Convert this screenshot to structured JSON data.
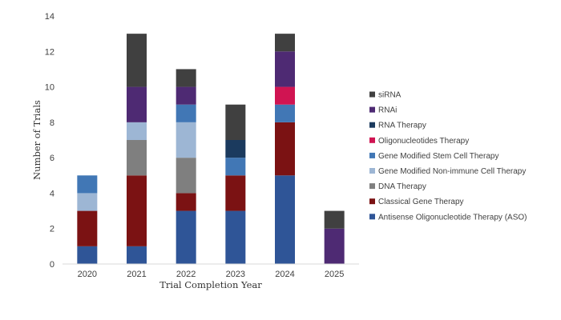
{
  "chart_data": {
    "type": "bar",
    "stacked": true,
    "title": "",
    "xlabel": "Trial Completion Year",
    "ylabel": "Number of Trials",
    "categories": [
      "2020",
      "2021",
      "2022",
      "2023",
      "2024",
      "2025"
    ],
    "ylim": [
      0,
      14
    ],
    "yticks": [
      0,
      2,
      4,
      6,
      8,
      10,
      12,
      14
    ],
    "grid": false,
    "legend_position": "right",
    "series": [
      {
        "name": "Antisense Oligonucleotide Therapy (ASO)",
        "color": "#2F5597",
        "values": [
          1,
          1,
          3,
          3,
          5,
          0
        ]
      },
      {
        "name": "Classical Gene Therapy",
        "color": "#7B1213",
        "values": [
          2,
          4,
          1,
          2,
          3,
          0
        ]
      },
      {
        "name": "DNA Therapy",
        "color": "#7F7F7F",
        "values": [
          0,
          2,
          2,
          0,
          0,
          0
        ]
      },
      {
        "name": "Gene Modified Non-immune Cell Therapy",
        "color": "#9DB6D4",
        "values": [
          1,
          1,
          2,
          0,
          0,
          0
        ]
      },
      {
        "name": "Gene Modified Stem Cell Therapy",
        "color": "#4177B5",
        "values": [
          1,
          0,
          1,
          1,
          1,
          0
        ]
      },
      {
        "name": "Oligonucleotides Therapy",
        "color": "#D01452",
        "values": [
          0,
          0,
          0,
          0,
          1,
          0
        ]
      },
      {
        "name": "RNA Therapy",
        "color": "#1B3A5E",
        "values": [
          0,
          0,
          0,
          1,
          0,
          0
        ]
      },
      {
        "name": "RNAi",
        "color": "#4E2A73",
        "values": [
          0,
          2,
          1,
          0,
          2,
          2
        ]
      },
      {
        "name": "siRNA",
        "color": "#404040",
        "values": [
          0,
          3,
          1,
          2,
          1,
          1
        ]
      }
    ]
  }
}
